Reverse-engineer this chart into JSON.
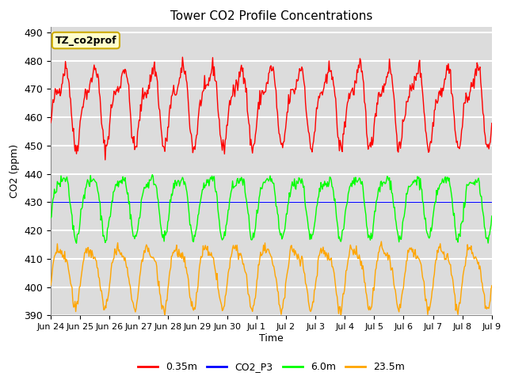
{
  "title": "Tower CO2 Profile Concentrations",
  "ylabel": "CO2 (ppm)",
  "xlabel": "Time",
  "ylim": [
    390,
    492
  ],
  "yticks": [
    390,
    400,
    410,
    420,
    430,
    440,
    450,
    460,
    470,
    480,
    490
  ],
  "xtick_labels": [
    "Jun 24",
    "Jun 25",
    "Jun 26",
    "Jun 27",
    "Jun 28",
    "Jun 29",
    "Jun 30",
    "Jul 1",
    "Jul 2",
    "Jul 3",
    "Jul 4",
    "Jul 5",
    "Jul 6",
    "Jul 7",
    "Jul 8",
    "Jul 9"
  ],
  "legend_labels": [
    "0.35m",
    "CO2_P3",
    "6.0m",
    "23.5m"
  ],
  "legend_colors": [
    "red",
    "blue",
    "green",
    "orange"
  ],
  "annotation_text": "TZ_co2prof",
  "annotation_bgcolor": "#ffffcc",
  "annotation_edgecolor": "#ccaa00",
  "plot_bg_color": "#dcdcdc",
  "grid_color": "white",
  "line_colors": {
    "red_035m": "red",
    "blue_co2p3": "blue",
    "green_6m": "lime",
    "orange_235m": "orange"
  },
  "red_base": 465,
  "green_base": 430,
  "orange_base": 405,
  "n_points": 600,
  "seed": 42
}
